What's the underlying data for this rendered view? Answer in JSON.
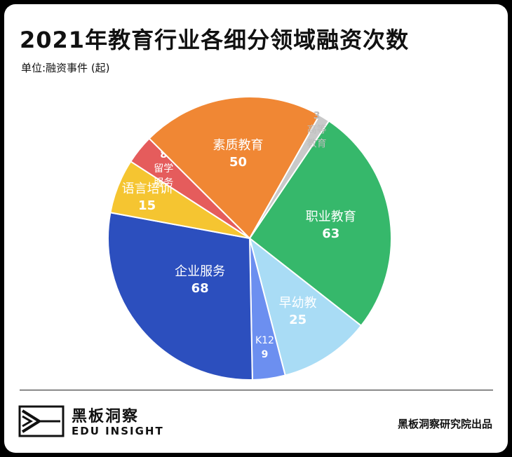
{
  "header": {
    "title": "2021年教育行业各细分领域融资次数",
    "unit": "单位:融资事件 (起)"
  },
  "chart_data": {
    "type": "pie",
    "title": "2021年教育行业各细分领域融资次数",
    "unit": "单位:融资事件 (起)",
    "categories": [
      "职业教育",
      "早幼教",
      "K12",
      "企业服务",
      "语言培训",
      "留学服务",
      "素质教育",
      "高等教育"
    ],
    "values": [
      63,
      25,
      9,
      68,
      15,
      8,
      50,
      3
    ],
    "colors": [
      "#36b86b",
      "#a9dcf5",
      "#6c8ff0",
      "#2c4fbe",
      "#f5c531",
      "#e55c5c",
      "#f08734",
      "#c9c9c9"
    ],
    "label_colors": [
      "#ffffff",
      "#ffffff",
      "#ffffff",
      "#ffffff",
      "#ffffff",
      "#ffffff",
      "#ffffff",
      "#bdbdbd"
    ],
    "legend": "none"
  },
  "footer": {
    "brand_name": "黑板洞察",
    "brand_en": "EDU INSIGHT",
    "credit": "黑板洞察研究院出品"
  }
}
